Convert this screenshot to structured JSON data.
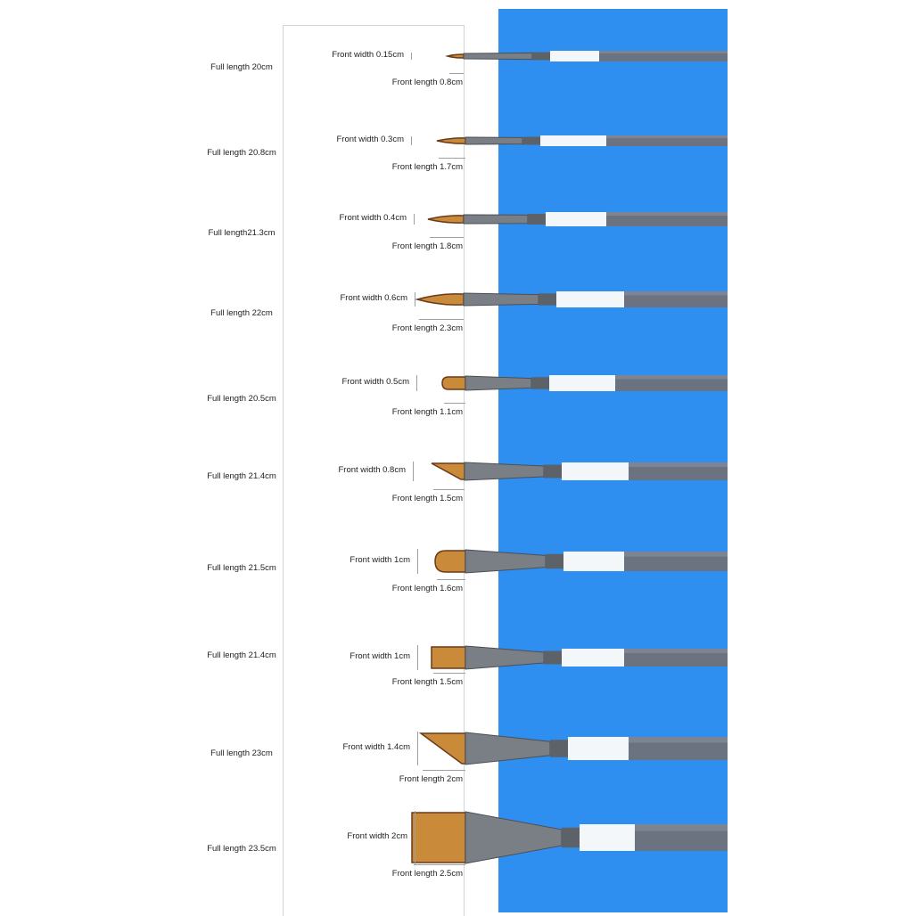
{
  "colors": {
    "background": "#2f8ff0",
    "panel_border": "#cfd4d8",
    "bristle_dark": "#6a3a1a",
    "bristle_light": "#c98a3a",
    "ferrule": "#7a7f85",
    "handle": "#6b7280",
    "band": "#f4f7fa"
  },
  "brushes": [
    {
      "full_length": "Full length 20cm",
      "front_width": "Front width 0.15cm",
      "front_length": "Front length 0.8cm",
      "shape": "round"
    },
    {
      "full_length": "Full length 20.8cm",
      "front_width": "Front width 0.3cm",
      "front_length": "Front length 1.7cm",
      "shape": "round"
    },
    {
      "full_length": "Full length21.3cm",
      "front_width": "Front width 0.4cm",
      "front_length": "Front length 1.8cm",
      "shape": "round"
    },
    {
      "full_length": "Full length 22cm",
      "front_width": "Front width 0.6cm",
      "front_length": "Front length 2.3cm",
      "shape": "round"
    },
    {
      "full_length": "Full length 20.5cm",
      "front_width": "Front width 0.5cm",
      "front_length": "Front length 1.1cm",
      "shape": "filbert"
    },
    {
      "full_length": "Full length 21.4cm",
      "front_width": "Front width 0.8cm",
      "front_length": "Front length 1.5cm",
      "shape": "angle"
    },
    {
      "full_length": "Full length 21.5cm",
      "front_width": "Front width 1cm",
      "front_length": "Front length 1.6cm",
      "shape": "filbert"
    },
    {
      "full_length": "Full length 21.4cm",
      "front_width": "Front width 1cm",
      "front_length": "Front length 1.5cm",
      "shape": "flat"
    },
    {
      "full_length": "Full length 23cm",
      "front_width": "Front width 1.4cm",
      "front_length": "Front length 2cm",
      "shape": "angle"
    },
    {
      "full_length": "Full length 23.5cm",
      "front_width": "Front width 2cm",
      "front_length": "Front length 2.5cm",
      "shape": "flat"
    }
  ]
}
